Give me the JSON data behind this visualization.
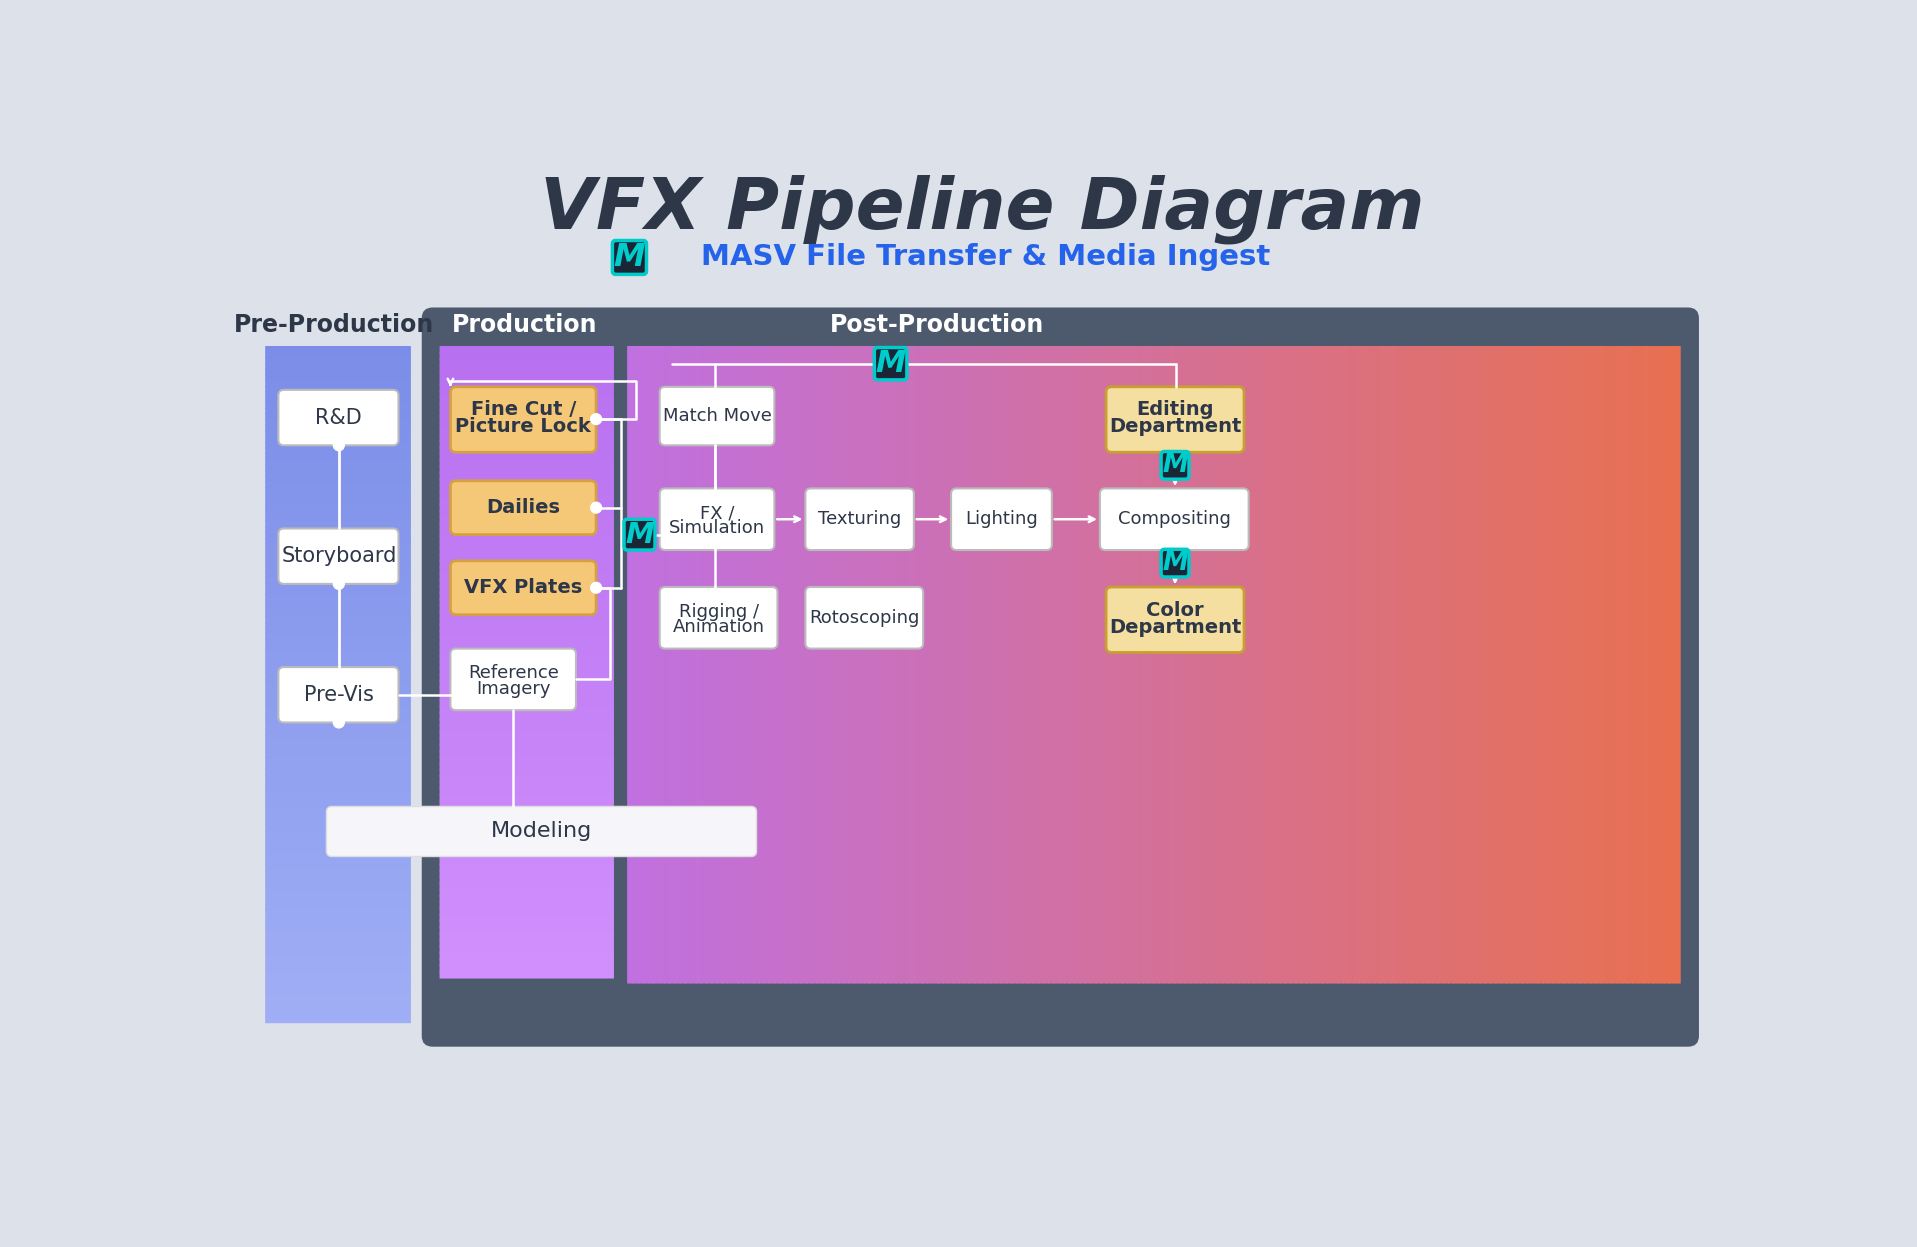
{
  "title": "VFX Pipeline Diagram",
  "subtitle": "MASV File Transfer & Media Ingest",
  "bg_color": "#dde1ea",
  "dark_panel_color": "#4d5a6e",
  "pre_prod_label": "Pre-Production",
  "prod_label": "Production",
  "post_prod_label": "Post-Production",
  "orange_box_bg": "#f5c878",
  "orange_box_border": "#d4a040",
  "white_box_bg": "#ffffff",
  "white_box_border": "#bbbbbb",
  "bold_box_bg": "#f5dfa0",
  "bold_box_border": "#c8a030",
  "masv_icon_bg": "#1a2535",
  "masv_icon_border": "#00cccc",
  "masv_icon_color": "#00cccc",
  "line_color": "#ffffff",
  "text_dark": "#2d3748",
  "text_white": "#ffffff",
  "subtitle_color": "#2563eb",
  "pre_prod_color_top": "#7b8de8",
  "pre_prod_color_bot": "#a0aef5",
  "prod_color_top": "#b870f0",
  "prod_color_bot": "#d090fc",
  "post_color_left": "#c070e0",
  "post_color_right": "#e87050"
}
